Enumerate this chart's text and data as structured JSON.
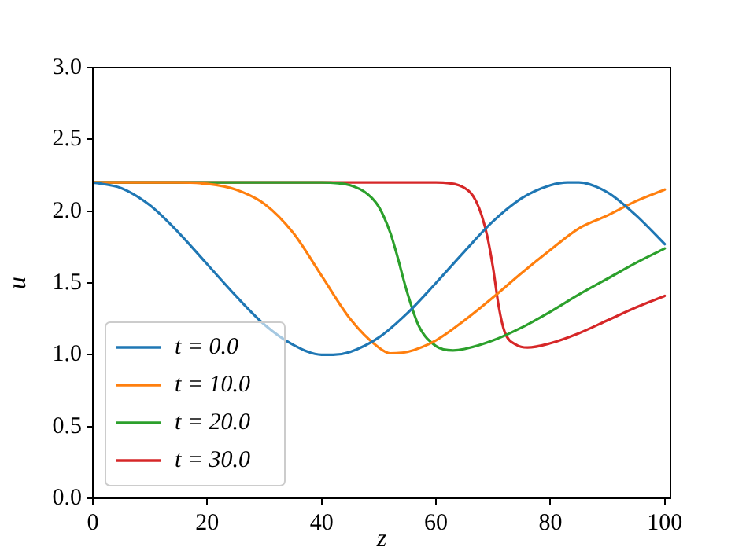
{
  "chart_data": {
    "type": "line",
    "xlabel": "z",
    "ylabel": "u",
    "xlim": [
      0,
      101
    ],
    "ylim": [
      0,
      3
    ],
    "xticks": [
      0,
      20,
      40,
      60,
      80,
      100
    ],
    "yticks": [
      {
        "value": 0,
        "label": "0.0"
      },
      {
        "value": 0.5,
        "label": "0.5"
      },
      {
        "value": 1,
        "label": "1.0"
      },
      {
        "value": 1.5,
        "label": "1.5"
      },
      {
        "value": 2,
        "label": "2.0"
      },
      {
        "value": 2.5,
        "label": "2.5"
      },
      {
        "value": 3,
        "label": "3.0"
      }
    ],
    "legend": "bottom left",
    "line_style": "solid",
    "marker": "none",
    "series": [
      {
        "name": "t = 0.0",
        "color": "#1f77b4",
        "x": [
          0,
          5,
          10,
          15,
          20,
          25,
          30,
          35,
          40,
          42,
          45,
          50,
          55,
          60,
          65,
          70,
          75,
          80,
          83,
          85,
          90,
          95,
          100
        ],
        "values": [
          2.2,
          2.16,
          2.04,
          1.85,
          1.63,
          1.41,
          1.21,
          1.07,
          1.0,
          1.0,
          1.02,
          1.12,
          1.29,
          1.5,
          1.72,
          1.93,
          2.09,
          2.18,
          2.2,
          2.2,
          2.13,
          1.97,
          1.77
        ]
      },
      {
        "name": "t = 10.0",
        "color": "#ff7f0e",
        "x": [
          0,
          15,
          20,
          25,
          30,
          35,
          40,
          45,
          50,
          52,
          55,
          60,
          65,
          70,
          75,
          80,
          85,
          90,
          95,
          100
        ],
        "values": [
          2.2,
          2.2,
          2.19,
          2.15,
          2.05,
          1.85,
          1.55,
          1.25,
          1.05,
          1.01,
          1.02,
          1.1,
          1.24,
          1.4,
          1.57,
          1.73,
          1.88,
          1.97,
          2.07,
          2.15
        ]
      },
      {
        "name": "t = 20.0",
        "color": "#2ca02c",
        "x": [
          0,
          40,
          45,
          48,
          50,
          52,
          53,
          55,
          57,
          60,
          63,
          65,
          70,
          75,
          80,
          85,
          90,
          95,
          100
        ],
        "values": [
          2.2,
          2.2,
          2.18,
          2.12,
          2.03,
          1.85,
          1.72,
          1.43,
          1.2,
          1.06,
          1.03,
          1.04,
          1.1,
          1.19,
          1.3,
          1.42,
          1.53,
          1.64,
          1.74
        ]
      },
      {
        "name": "t = 30.0",
        "color": "#d62728",
        "x": [
          0,
          60,
          64,
          66,
          67,
          68,
          69,
          70,
          71,
          72,
          74,
          76,
          80,
          85,
          90,
          95,
          100
        ],
        "values": [
          2.2,
          2.2,
          2.18,
          2.13,
          2.07,
          1.97,
          1.82,
          1.6,
          1.33,
          1.16,
          1.07,
          1.05,
          1.08,
          1.15,
          1.24,
          1.33,
          1.41
        ]
      }
    ]
  }
}
